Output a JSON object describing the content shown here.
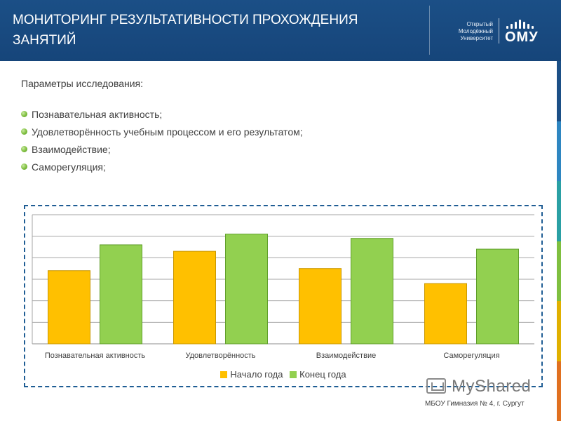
{
  "header": {
    "title": "МОНИТОРИНГ РЕЗУЛЬТАТИВНОСТИ ПРОХОЖДЕНИЯ ЗАНЯТИЙ",
    "logo_lines": [
      "Открытый",
      "Молодёжный",
      "Университет"
    ],
    "logo_abbr": "ОМУ"
  },
  "content": {
    "params_title": "Параметры исследования:",
    "params": [
      "Познавательная активность;",
      "Удовлетворённость  учебным процессом и его результатом;",
      "Взаимодействие;",
      "Саморегуляция;"
    ]
  },
  "chart_data": {
    "type": "bar",
    "categories": [
      "Познавательная активность",
      "Удовлетворённость",
      "Взаимодействие",
      "Саморегуляция"
    ],
    "series": [
      {
        "name": "Начало года",
        "values": [
          3.4,
          4.3,
          3.5,
          2.8
        ],
        "color": "#ffc000"
      },
      {
        "name": "Конец года",
        "values": [
          4.6,
          5.1,
          4.9,
          4.4
        ],
        "color": "#92d050"
      }
    ],
    "ylim": [
      0,
      6
    ],
    "grid": true,
    "legend": "bottom",
    "title": "",
    "xlabel": "",
    "ylabel": ""
  },
  "watermark": "MyShared",
  "footer": "МБОУ Гимназия № 4, г. Сургут",
  "colors": {
    "header_bg": "#1b4f86",
    "frame_border": "#1f5d94",
    "bar_start": "#ffc000",
    "bar_end": "#92d050",
    "side_stripe": [
      "#1b4f86",
      "#2e86c1",
      "#2aa0a4",
      "#7fbf3f",
      "#e0b000",
      "#e07020"
    ]
  }
}
